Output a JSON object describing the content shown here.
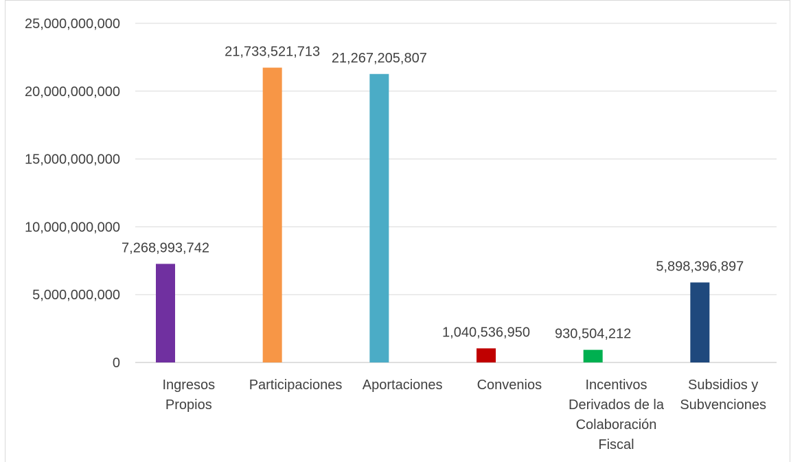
{
  "chart_data": {
    "type": "bar",
    "categories": [
      [
        "Ingresos",
        "Propios"
      ],
      [
        "Participaciones"
      ],
      [
        "Aportaciones"
      ],
      [
        "Convenios"
      ],
      [
        "Incentivos",
        "Derivados de la",
        "Colaboración",
        "Fiscal"
      ],
      [
        "Subsidios y",
        "Subvenciones"
      ]
    ],
    "values": [
      7268993742,
      21733521713,
      21267205807,
      1040536950,
      930504212,
      5898396897
    ],
    "value_labels": [
      "7,268,993,742",
      "21,733,521,713",
      "21,267,205,807",
      "1,040,536,950",
      "930,504,212",
      "5,898,396,897"
    ],
    "colors": [
      "#7030a0",
      "#f79646",
      "#4bacc6",
      "#c00000",
      "#00b050",
      "#1f497d"
    ],
    "ylim": [
      0,
      25000000000
    ],
    "yticks": [
      0,
      5000000000,
      10000000000,
      15000000000,
      20000000000,
      25000000000
    ],
    "ytick_labels": [
      "0",
      "5,000,000,000",
      "10,000,000,000",
      "15,000,000,000",
      "20,000,000,000",
      "25,000,000,000"
    ],
    "title": "",
    "xlabel": "",
    "ylabel": "",
    "grid": true,
    "legend": "none"
  }
}
